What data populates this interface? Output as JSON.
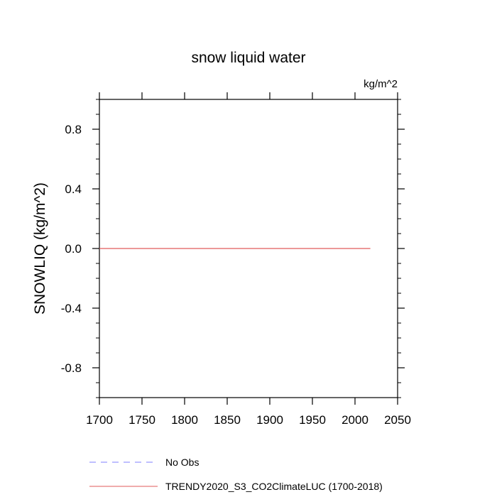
{
  "chart_data": {
    "type": "line",
    "title": "snow liquid water",
    "units_label": "kg/m^2",
    "ylabel": "SNOWLIQ  (kg/m^2)",
    "xlabel": "",
    "xlim": [
      1700,
      2050
    ],
    "ylim": [
      -1.0,
      1.0
    ],
    "x_ticks": [
      1700,
      1750,
      1800,
      1850,
      1900,
      1950,
      2000,
      2050
    ],
    "x_tick_labels": [
      "1700",
      "1750",
      "1800",
      "1850",
      "1900",
      "1950",
      "2000",
      "2050"
    ],
    "y_ticks": [
      0.8,
      0.4,
      0.0,
      -0.4,
      -0.8
    ],
    "y_tick_labels": [
      "0.8",
      "0.4",
      "0.0",
      "-0.4",
      "-0.8"
    ],
    "grid": false,
    "legend_position": "bottom-left, below plot",
    "series": [
      {
        "name": "No Obs",
        "style": "dashed",
        "color": "#7f7fff",
        "x": [],
        "y": []
      },
      {
        "name": "TRENDY2020_S3_CO2ClimateLUC (1700-2018)",
        "style": "solid",
        "color": "#e05a5a",
        "x": [
          1700,
          1750,
          1800,
          1850,
          1900,
          1950,
          2000,
          2018
        ],
        "y": [
          0.0,
          0.0,
          0.0,
          0.0,
          0.0,
          0.0,
          0.0,
          0.0
        ]
      }
    ]
  }
}
